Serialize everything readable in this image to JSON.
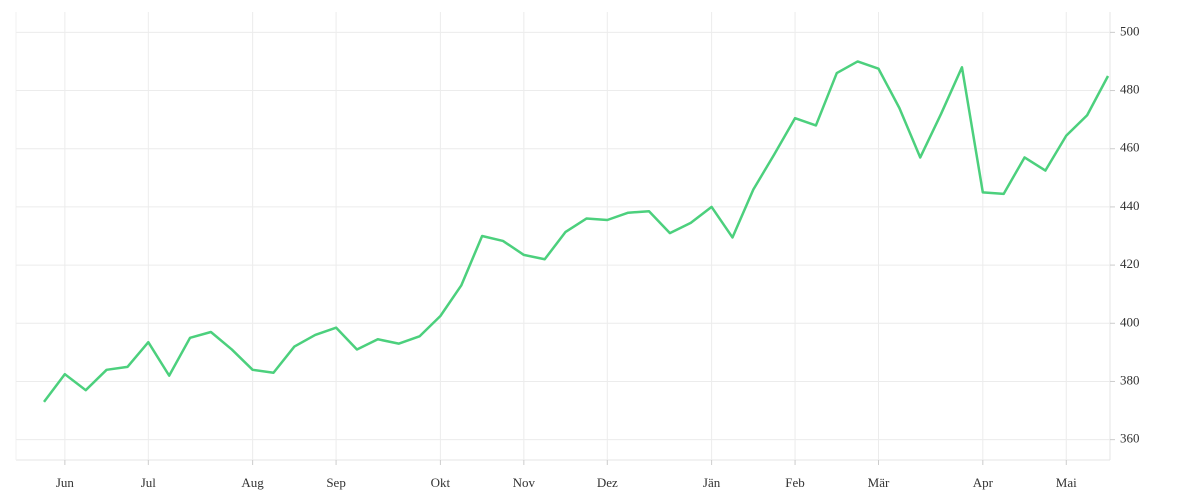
{
  "chart_data": {
    "type": "line",
    "categories": [
      null,
      "Jun",
      null,
      null,
      null,
      "Jul",
      null,
      null,
      null,
      null,
      "Aug",
      null,
      null,
      null,
      "Sep",
      null,
      null,
      null,
      null,
      "Okt",
      null,
      null,
      null,
      "Nov",
      null,
      null,
      null,
      "Dez",
      null,
      null,
      null,
      null,
      "Jän",
      null,
      null,
      null,
      "Feb",
      null,
      null,
      null,
      "Mär",
      null,
      null,
      null,
      null,
      "Apr",
      null,
      null,
      null,
      "Mai",
      null,
      null
    ],
    "values": [
      373,
      382.5,
      377,
      384,
      385,
      393.5,
      382,
      395,
      397,
      391,
      384,
      383,
      392,
      396,
      398.5,
      391,
      394.5,
      393,
      395.5,
      402.5,
      413,
      430,
      428.3,
      423.5,
      422,
      431.4,
      436,
      435.5,
      438,
      438.5,
      431,
      434.5,
      440,
      429.5,
      446,
      458,
      470.5,
      468,
      486,
      490,
      487.5,
      474,
      457,
      472,
      488,
      445,
      444.5,
      457,
      452.5,
      464.5,
      471.5,
      485
    ],
    "color": "#4cd07d",
    "ylim": [
      353,
      507
    ],
    "yticks": [
      360,
      380,
      400,
      420,
      440,
      460,
      480,
      500
    ],
    "grid": true
  }
}
